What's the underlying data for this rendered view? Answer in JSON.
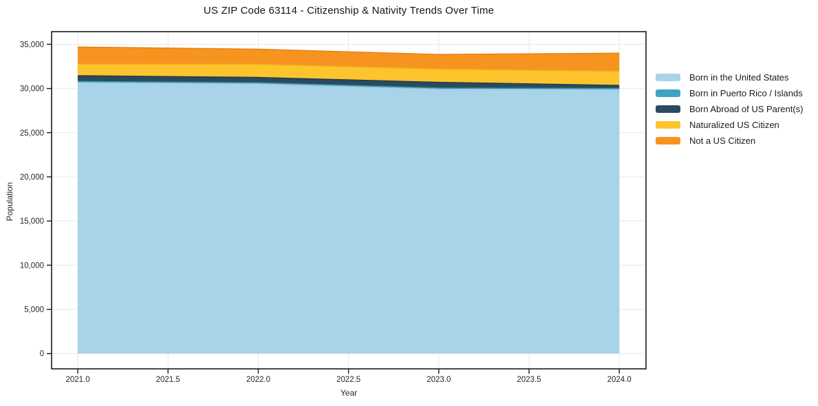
{
  "chart_data": {
    "type": "area",
    "stacked": true,
    "title": "US ZIP Code 63114 - Citizenship & Nativity Trends Over Time",
    "xlabel": "Year",
    "ylabel": "Population",
    "x": [
      2021,
      2022,
      2023,
      2024
    ],
    "series": [
      {
        "name": "Born in the United States",
        "color": "#a8d3e8",
        "edge": "#8fc2da",
        "values": [
          30700,
          30550,
          29950,
          29900
        ]
      },
      {
        "name": "Born in Puerto Rico / Islands",
        "color": "#3fa3c2",
        "edge": "#348faa",
        "values": [
          100,
          100,
          100,
          100
        ]
      },
      {
        "name": "Born Abroad of US Parent(s)",
        "color": "#2a4b5e",
        "edge": "#1f3c4c",
        "values": [
          650,
          600,
          650,
          350
        ]
      },
      {
        "name": "Naturalized US Citizen",
        "color": "#fdc42d",
        "edge": "#efb01a",
        "values": [
          1300,
          1500,
          1500,
          1600
        ]
      },
      {
        "name": "Not a US Citizen",
        "color": "#f7941f",
        "edge": "#e88210",
        "values": [
          1950,
          1700,
          1650,
          2050
        ]
      }
    ],
    "totals_by_year": [
      34700,
      34450,
      33850,
      34000
    ],
    "xlim": [
      2020.855,
      2024.148
    ],
    "ylim": [
      -1735,
      36435
    ],
    "x_ticks": {
      "values": [
        2021.0,
        2021.5,
        2022.0,
        2022.5,
        2023.0,
        2023.5,
        2024.0
      ],
      "labels": [
        "2021.0",
        "2021.5",
        "2022.0",
        "2022.5",
        "2023.0",
        "2023.5",
        "2024.0"
      ]
    },
    "y_ticks": {
      "values": [
        0,
        5000,
        10000,
        15000,
        20000,
        25000,
        30000,
        35000
      ],
      "labels": [
        "0",
        "5,000",
        "10,000",
        "15,000",
        "20,000",
        "25,000",
        "30,000",
        "35,000"
      ]
    },
    "grid": true,
    "legend_position": "right-outside",
    "style": {
      "grid_color": "#e8e8ec",
      "spine_color": "#1a1a1a",
      "tick_label_color": "#262626",
      "background": "#ffffff"
    }
  }
}
